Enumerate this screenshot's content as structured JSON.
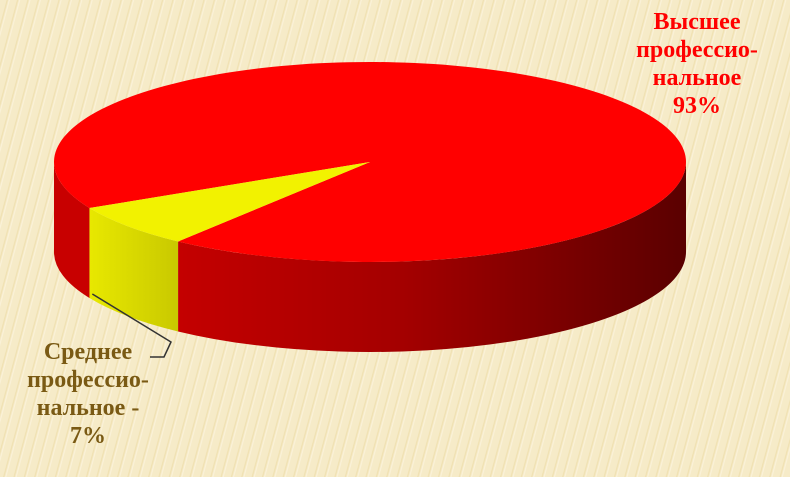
{
  "chart_data": {
    "type": "pie",
    "style": "3d",
    "slices": [
      {
        "label_lines": [
          "Высшее",
          "профессио-",
          "нальное",
          "93%"
        ],
        "value": 93,
        "color": "#ff0000",
        "label_color": "#ff0000"
      },
      {
        "label_lines": [
          "Среднее",
          "профессио-",
          "нальное -",
          "7%"
        ],
        "value": 7,
        "color": "#f2f200",
        "label_color": "#7a5a14"
      }
    ],
    "legend": "none"
  }
}
